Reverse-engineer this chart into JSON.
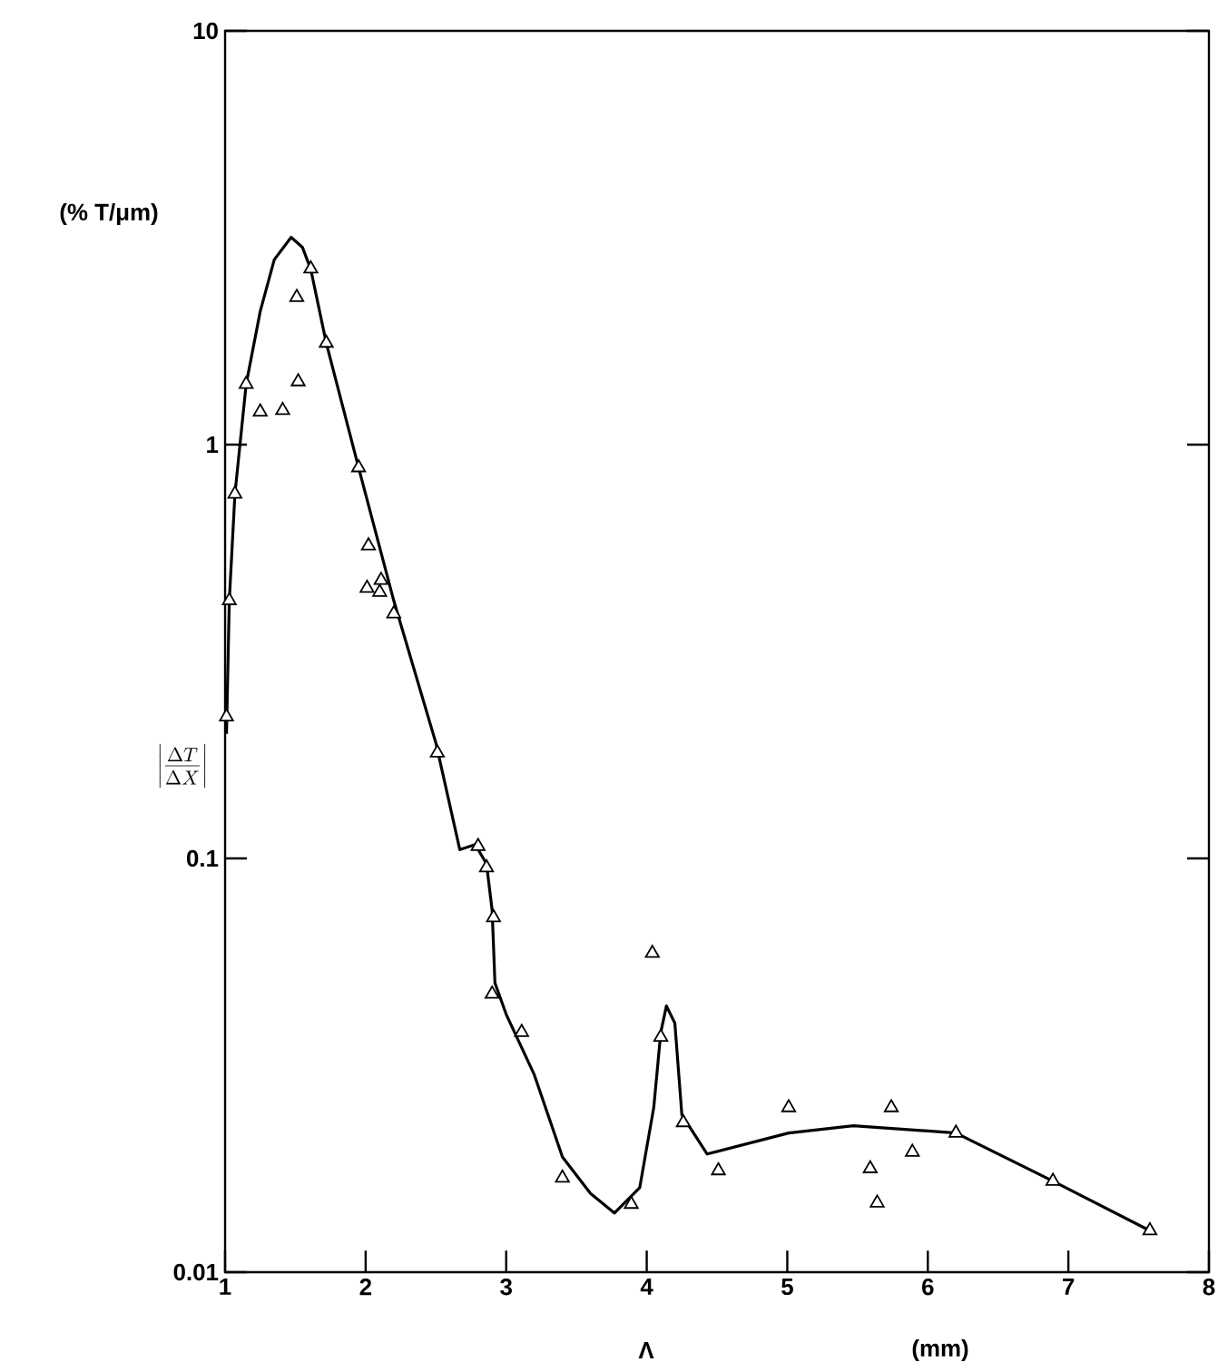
{
  "chart_data": {
    "type": "scatter",
    "xlabel": "Λ",
    "ylabel": "\\left|\\frac{\\Delta T}{\\Delta X}\\right|",
    "annotations": [
      "(% T/μm)",
      "(mm)"
    ],
    "log": "y",
    "xlim": [
      1,
      8
    ],
    "ylim": [
      0.01,
      10
    ],
    "xticks": [
      1,
      2,
      3,
      4,
      5,
      6,
      7,
      8
    ],
    "yticks": [
      0.01,
      0.1,
      1,
      10
    ],
    "series": [
      {
        "marker": "triangle",
        "color": "#000000",
        "x": [
          1.01,
          1.03,
          1.07,
          1.15,
          1.25,
          1.41,
          1.52,
          1.51,
          1.61,
          1.72,
          1.95,
          2.02,
          2.01,
          2.11,
          2.1,
          2.2,
          2.51,
          2.8,
          2.86,
          2.91,
          2.9,
          3.11,
          3.4,
          3.89,
          4.04,
          4.1,
          4.26,
          4.51,
          5.01,
          5.74,
          5.59,
          5.64,
          5.89,
          6.2,
          6.89,
          7.58
        ],
        "values": [
          0.22,
          0.42,
          0.76,
          1.4,
          1.2,
          1.21,
          1.42,
          2.27,
          2.66,
          1.76,
          0.88,
          0.57,
          0.45,
          0.47,
          0.44,
          0.39,
          0.18,
          0.107,
          0.095,
          0.072,
          0.047,
          0.038,
          0.0169,
          0.0146,
          0.059,
          0.037,
          0.023,
          0.0176,
          0.025,
          0.025,
          0.0178,
          0.0147,
          0.0195,
          0.0217,
          0.0166,
          0.0126
        ]
      },
      {
        "type": "line",
        "marker": "none",
        "line_style": "solid",
        "color": "#000000",
        "x": [
          1.01,
          1.03,
          1.07,
          1.15,
          1.25,
          1.35,
          1.47,
          1.55,
          1.61,
          1.72,
          1.95,
          2.2,
          2.5,
          2.67,
          2.78,
          2.86,
          2.9,
          2.92,
          3.0,
          3.2,
          3.4,
          3.6,
          3.77,
          3.95,
          4.05,
          4.1,
          4.14,
          4.2,
          4.25,
          4.43,
          5.01,
          5.47,
          6.2,
          6.89,
          7.58
        ],
        "values": [
          0.2,
          0.42,
          0.76,
          1.4,
          2.1,
          2.8,
          3.17,
          3.0,
          2.65,
          1.76,
          0.88,
          0.42,
          0.19,
          0.105,
          0.108,
          0.097,
          0.075,
          0.05,
          0.042,
          0.03,
          0.019,
          0.0155,
          0.0139,
          0.016,
          0.025,
          0.038,
          0.044,
          0.04,
          0.024,
          0.0193,
          0.0217,
          0.0226,
          0.0217,
          0.0166,
          0.0126
        ]
      }
    ]
  }
}
